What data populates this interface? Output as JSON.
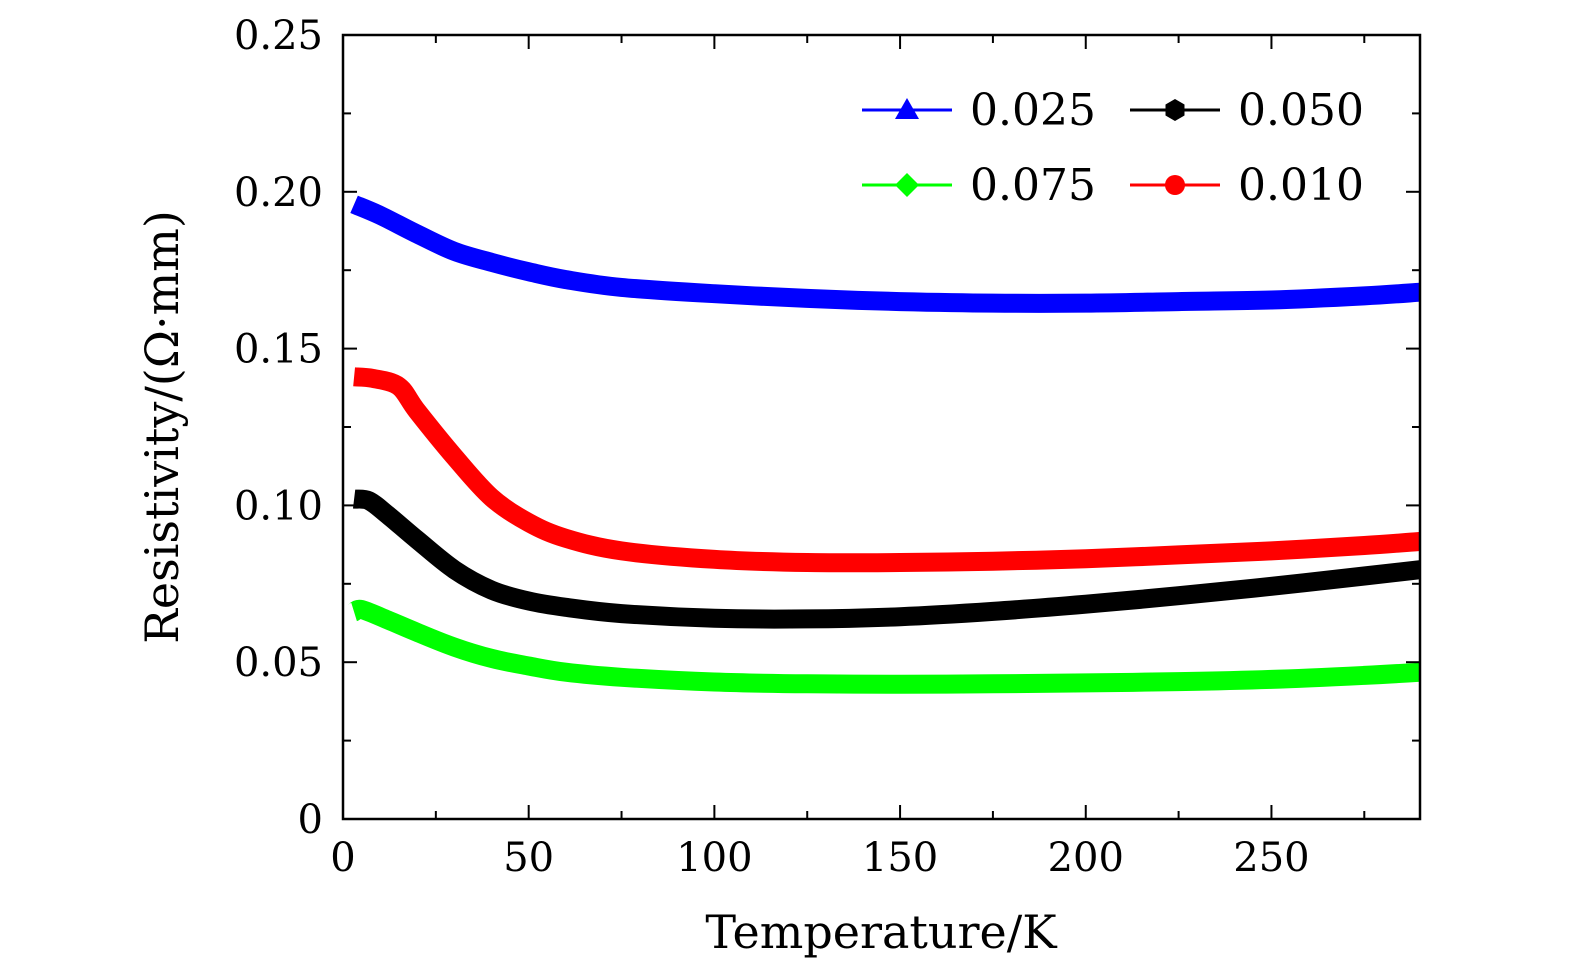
{
  "chart_data": {
    "type": "line",
    "title": "",
    "xlabel": "Temperature/K",
    "ylabel": "Resistivity/(Ω·mm)",
    "xlim": [
      0,
      290
    ],
    "ylim": [
      0,
      0.25
    ],
    "x_ticks": [
      0,
      50,
      100,
      150,
      200,
      250
    ],
    "x_tick_labels": [
      "0",
      "50",
      "100",
      "150",
      "200",
      "250"
    ],
    "y_ticks": [
      0,
      0.05,
      0.1,
      0.15,
      0.2,
      0.25
    ],
    "y_tick_labels": [
      "0",
      "0.05",
      "0.10",
      "0.15",
      "0.20",
      "0.25"
    ],
    "grid": false,
    "legend_position": "top-right",
    "series": [
      {
        "name": "0.025",
        "color": "#0000ff",
        "marker": "triangle",
        "x": [
          3,
          10,
          20,
          30,
          40,
          50,
          60,
          75,
          100,
          125,
          150,
          175,
          200,
          225,
          250,
          275,
          290
        ],
        "y": [
          0.196,
          0.1925,
          0.1865,
          0.181,
          0.1775,
          0.1745,
          0.172,
          0.1695,
          0.1675,
          0.166,
          0.165,
          0.1645,
          0.1645,
          0.165,
          0.1655,
          0.1668,
          0.168
        ]
      },
      {
        "name": "0.050",
        "color": "#000000",
        "marker": "hexagon",
        "x": [
          3,
          7,
          12,
          20,
          30,
          40,
          50,
          60,
          75,
          100,
          125,
          150,
          175,
          200,
          225,
          250,
          275,
          290
        ],
        "y": [
          0.102,
          0.1015,
          0.097,
          0.089,
          0.0795,
          0.073,
          0.0695,
          0.0675,
          0.0655,
          0.064,
          0.0638,
          0.0645,
          0.0662,
          0.0685,
          0.0712,
          0.0742,
          0.0775,
          0.0795
        ]
      },
      {
        "name": "0.075",
        "color": "#00ff00",
        "marker": "diamond",
        "x": [
          3,
          5,
          12,
          20,
          30,
          40,
          50,
          60,
          75,
          100,
          125,
          150,
          175,
          200,
          225,
          250,
          275,
          290
        ],
        "y": [
          0.066,
          0.0668,
          0.0635,
          0.0595,
          0.0548,
          0.0512,
          0.0488,
          0.0468,
          0.0452,
          0.0437,
          0.0431,
          0.043,
          0.0431,
          0.0434,
          0.0438,
          0.0445,
          0.0458,
          0.0468
        ]
      },
      {
        "name": "0.010",
        "color": "#ff0000",
        "marker": "circle",
        "x": [
          3,
          8,
          15,
          20,
          30,
          40,
          50,
          60,
          75,
          100,
          125,
          150,
          175,
          200,
          225,
          250,
          275,
          290
        ],
        "y": [
          0.141,
          0.1405,
          0.138,
          0.13,
          0.1155,
          0.1025,
          0.0945,
          0.0895,
          0.0855,
          0.0828,
          0.0818,
          0.0818,
          0.0822,
          0.083,
          0.0842,
          0.0855,
          0.0872,
          0.0885
        ]
      }
    ],
    "legend_layout": [
      [
        "0.025",
        "0.050"
      ],
      [
        "0.075",
        "0.010"
      ]
    ]
  }
}
